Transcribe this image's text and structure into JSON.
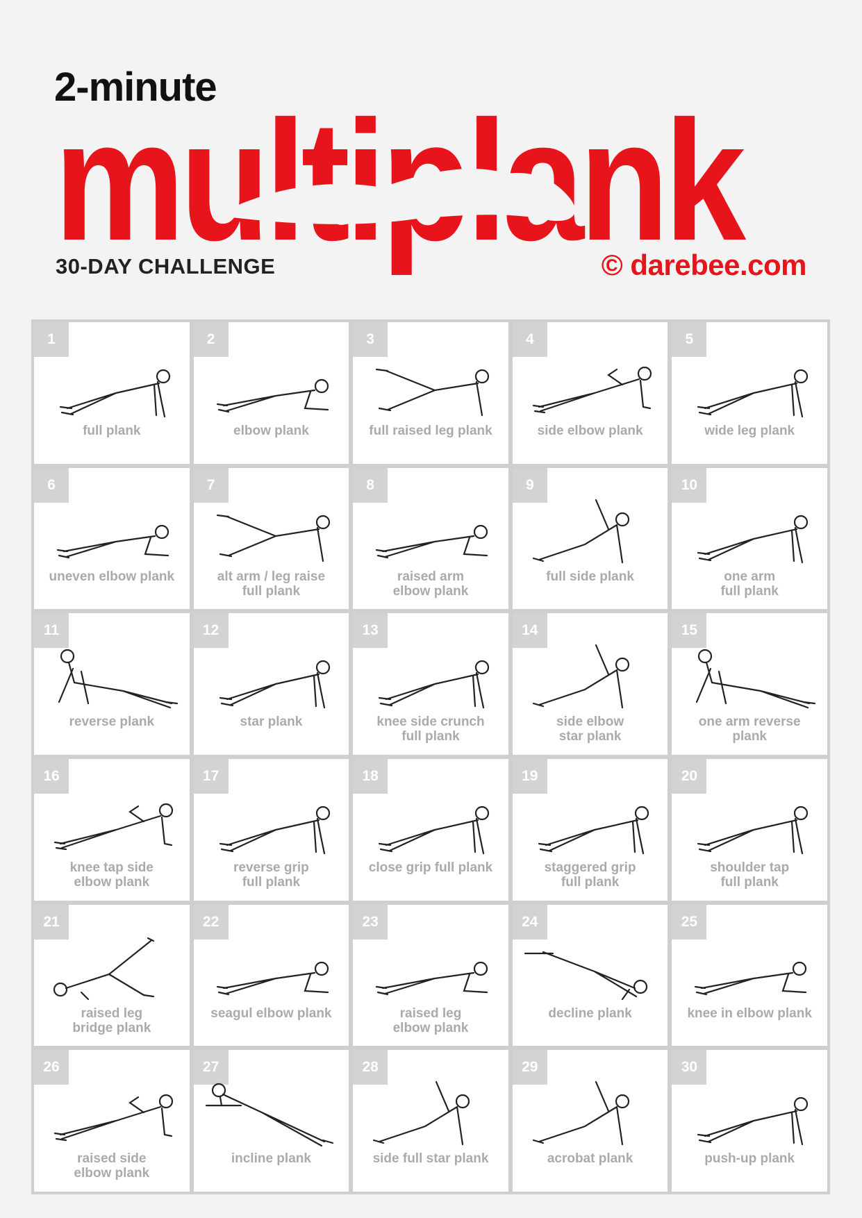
{
  "header": {
    "top_line": "2-minute",
    "title": "multiplank",
    "challenge": "30-DAY CHALLENGE",
    "brand": "© darebee.com"
  },
  "colors": {
    "accent": "#e8141b",
    "label": "#aaaaaa",
    "number_badge": "#d3d3d3"
  },
  "days": [
    {
      "num": "1",
      "label": [
        "full plank"
      ],
      "pose": "plank"
    },
    {
      "num": "2",
      "label": [
        "elbow plank"
      ],
      "pose": "elbow"
    },
    {
      "num": "3",
      "label": [
        "full raised leg plank"
      ],
      "pose": "raised-leg"
    },
    {
      "num": "4",
      "label": [
        "side elbow plank"
      ],
      "pose": "side"
    },
    {
      "num": "5",
      "label": [
        "wide leg plank"
      ],
      "pose": "plank"
    },
    {
      "num": "6",
      "label": [
        "uneven elbow plank"
      ],
      "pose": "elbow"
    },
    {
      "num": "7",
      "label": [
        "alt arm / leg raise",
        "full plank"
      ],
      "pose": "raised-leg"
    },
    {
      "num": "8",
      "label": [
        "raised arm",
        "elbow plank"
      ],
      "pose": "elbow"
    },
    {
      "num": "9",
      "label": [
        "full side plank"
      ],
      "pose": "side-arm"
    },
    {
      "num": "10",
      "label": [
        "one arm",
        "full plank"
      ],
      "pose": "plank"
    },
    {
      "num": "11",
      "label": [
        "reverse plank"
      ],
      "pose": "reverse"
    },
    {
      "num": "12",
      "label": [
        "star plank"
      ],
      "pose": "plank"
    },
    {
      "num": "13",
      "label": [
        "knee side crunch",
        "full plank"
      ],
      "pose": "plank"
    },
    {
      "num": "14",
      "label": [
        "side elbow",
        "star plank"
      ],
      "pose": "side-arm"
    },
    {
      "num": "15",
      "label": [
        "one arm reverse",
        "plank"
      ],
      "pose": "reverse"
    },
    {
      "num": "16",
      "label": [
        "knee tap side",
        "elbow plank"
      ],
      "pose": "side"
    },
    {
      "num": "17",
      "label": [
        "reverse grip",
        "full plank"
      ],
      "pose": "plank"
    },
    {
      "num": "18",
      "label": [
        "close grip full plank"
      ],
      "pose": "plank"
    },
    {
      "num": "19",
      "label": [
        "staggered grip",
        "full plank"
      ],
      "pose": "plank"
    },
    {
      "num": "20",
      "label": [
        "shoulder tap",
        "full plank"
      ],
      "pose": "plank"
    },
    {
      "num": "21",
      "label": [
        "raised leg",
        "bridge plank"
      ],
      "pose": "bridge"
    },
    {
      "num": "22",
      "label": [
        "seagul elbow plank"
      ],
      "pose": "elbow"
    },
    {
      "num": "23",
      "label": [
        "raised leg",
        "elbow plank"
      ],
      "pose": "elbow"
    },
    {
      "num": "24",
      "label": [
        "decline plank"
      ],
      "pose": "decline"
    },
    {
      "num": "25",
      "label": [
        "knee in elbow plank"
      ],
      "pose": "elbow"
    },
    {
      "num": "26",
      "label": [
        "raised side",
        "elbow plank"
      ],
      "pose": "side"
    },
    {
      "num": "27",
      "label": [
        "incline plank"
      ],
      "pose": "incline"
    },
    {
      "num": "28",
      "label": [
        "side full star plank"
      ],
      "pose": "side-arm"
    },
    {
      "num": "29",
      "label": [
        "acrobat plank"
      ],
      "pose": "side-arm"
    },
    {
      "num": "30",
      "label": [
        "push-up plank"
      ],
      "pose": "plank"
    }
  ]
}
